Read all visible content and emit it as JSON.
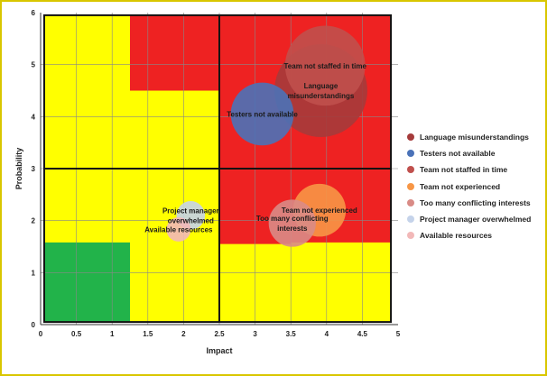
{
  "chart_data": {
    "type": "bubble",
    "title": "",
    "xlabel": "Impact",
    "ylabel": "Probability",
    "xlim": [
      0,
      5
    ],
    "ylim": [
      0,
      6
    ],
    "xticks": [
      "0",
      "0.5",
      "1",
      "1.5",
      "2",
      "2.5",
      "3",
      "3.5",
      "4",
      "4.5",
      "5"
    ],
    "yticks": [
      "0",
      "1",
      "2",
      "3",
      "4",
      "5",
      "6"
    ],
    "grid": true,
    "legend_position": "right",
    "zones": [
      {
        "x0": 0.05,
        "x1": 4.9,
        "y0": 0.05,
        "y1": 5.95,
        "color": "#ffff00"
      },
      {
        "x0": 1.25,
        "x1": 2.5,
        "y0": 4.5,
        "y1": 5.95,
        "color": "#ee2222"
      },
      {
        "x0": 2.5,
        "x1": 4.9,
        "y0": 3.0,
        "y1": 5.95,
        "color": "#ee2222"
      },
      {
        "x0": 2.5,
        "x1": 3.5,
        "y0": 1.55,
        "y1": 3.0,
        "color": "#ee2222"
      },
      {
        "x0": 3.5,
        "x1": 4.9,
        "y0": 1.58,
        "y1": 3.0,
        "color": "#ee2222"
      },
      {
        "x0": 0.05,
        "x1": 1.25,
        "y0": 0.05,
        "y1": 1.58,
        "color": "#22b34a"
      }
    ],
    "series": [
      {
        "name": "Language misunderstandings",
        "x": 3.92,
        "y": 4.5,
        "size": 0.65,
        "color": "#a53b3b",
        "label": "Language\nmisunderstandings"
      },
      {
        "name": "Testers not available",
        "x": 3.1,
        "y": 4.05,
        "size": 0.44,
        "color": "#4a72b8",
        "label": "Testers not available"
      },
      {
        "name": "Team not staffed in time",
        "x": 3.98,
        "y": 4.98,
        "size": 0.56,
        "color": "#c0504d",
        "label": "Team not staffed in time"
      },
      {
        "name": "Team not experienced",
        "x": 3.9,
        "y": 2.2,
        "size": 0.37,
        "color": "#f79646",
        "label": "Team not experienced"
      },
      {
        "name": "Too many conflicting interests",
        "x": 3.52,
        "y": 1.95,
        "size": 0.33,
        "color": "#d98b86",
        "label": "Too many conflicting\ninterests"
      },
      {
        "name": "Project manager overwhelmed",
        "x": 2.1,
        "y": 2.1,
        "size": 0.2,
        "color": "#c5d3ea",
        "label": "Project manager\noverwhelmed"
      },
      {
        "name": "Available resources",
        "x": 1.93,
        "y": 1.83,
        "size": 0.17,
        "color": "#f2b8b8",
        "label": "Available resources"
      }
    ]
  }
}
